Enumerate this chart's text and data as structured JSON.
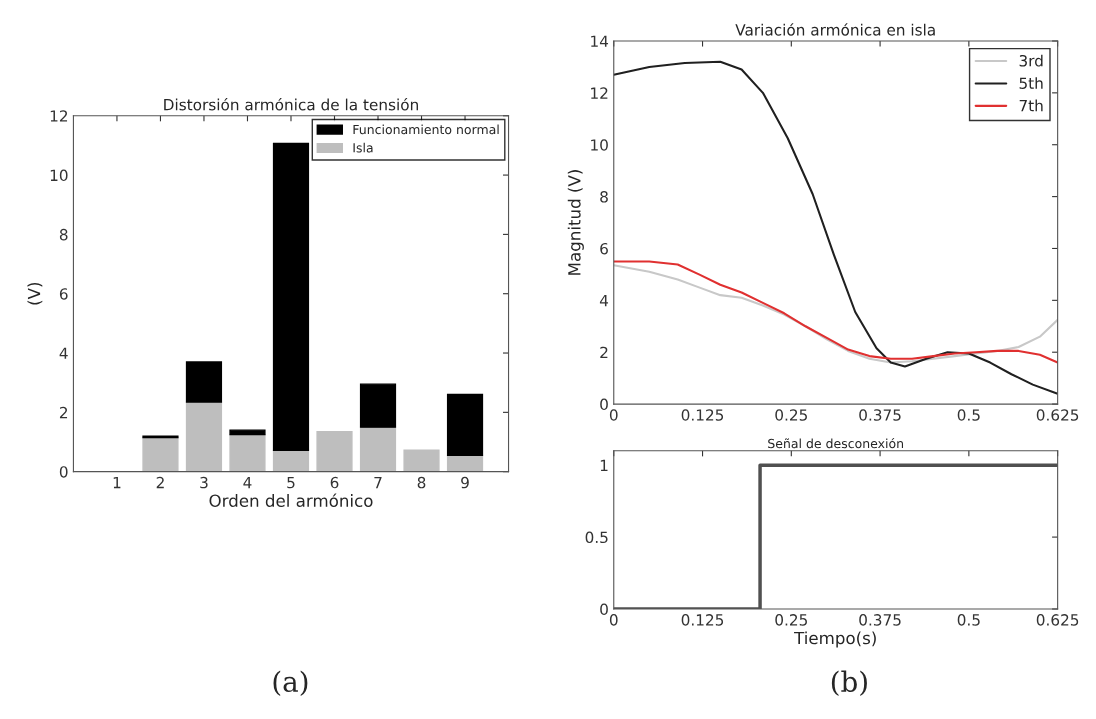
{
  "chart_data": [
    {
      "type": "bar",
      "title": "Distorsión armónica de la tensión",
      "xlabel": "Orden del armónico",
      "ylabel": "(V)",
      "categories": [
        "1",
        "2",
        "3",
        "4",
        "5",
        "6",
        "7",
        "8",
        "9"
      ],
      "stacked": true,
      "series": [
        {
          "name": "Isla",
          "color": "#bebebe",
          "values": [
            null,
            1.15,
            2.35,
            1.25,
            0.72,
            1.35,
            1.5,
            0.72,
            0.55
          ]
        },
        {
          "name": "Funcionamiento normal",
          "color": "#000000",
          "values": [
            null,
            0.05,
            1.35,
            0.15,
            10.35,
            null,
            1.45,
            null,
            2.05
          ]
        }
      ],
      "ylim": [
        0,
        12
      ],
      "yticks": [
        0,
        2,
        4,
        6,
        8,
        10,
        12
      ],
      "grid": false,
      "legend": "top right",
      "annotations": [
        "(a)"
      ]
    },
    {
      "type": "line",
      "title": "Variación armónica en isla",
      "ylabel": "Magnitud (V)",
      "x": [
        0,
        0.05,
        0.09,
        0.12,
        0.15,
        0.18,
        0.21,
        0.24,
        0.27,
        0.3,
        0.33,
        0.36,
        0.39,
        0.42,
        0.45,
        0.48,
        0.51,
        0.54,
        0.57,
        0.6,
        0.625
      ],
      "series": [
        {
          "name": "3rd",
          "color": "#c8c8c8",
          "values": [
            5.35,
            5.1,
            4.8,
            4.5,
            4.2,
            4.1,
            3.8,
            3.45,
            3.0,
            2.5,
            2.05,
            1.75,
            1.6,
            1.65,
            1.75,
            1.85,
            1.95,
            2.05,
            2.2,
            2.6,
            3.25
          ]
        },
        {
          "name": "5th",
          "color": "#202020",
          "x": [
            0,
            0.05,
            0.1,
            0.15,
            0.18,
            0.21,
            0.245,
            0.28,
            0.31,
            0.34,
            0.37,
            0.39,
            0.41,
            0.44,
            0.47,
            0.5,
            0.53,
            0.56,
            0.59,
            0.625
          ],
          "values": [
            12.7,
            13.0,
            13.15,
            13.2,
            12.9,
            12.0,
            10.25,
            8.1,
            5.75,
            3.55,
            2.15,
            1.6,
            1.45,
            1.75,
            2.0,
            1.95,
            1.6,
            1.15,
            0.75,
            0.4
          ]
        },
        {
          "name": "7th",
          "color": "#e03030",
          "values": [
            5.5,
            5.5,
            5.38,
            5.0,
            4.6,
            4.3,
            3.9,
            3.5,
            3.0,
            2.55,
            2.1,
            1.85,
            1.75,
            1.75,
            1.85,
            1.95,
            2.0,
            2.05,
            2.05,
            1.9,
            1.6
          ]
        }
      ],
      "xlim": [
        0,
        0.625
      ],
      "xticks": [
        0,
        0.125,
        0.25,
        0.375,
        0.5,
        0.625
      ],
      "ylim": [
        0,
        14
      ],
      "yticks": [
        0,
        2,
        4,
        6,
        8,
        10,
        12,
        14
      ],
      "grid": false,
      "legend": "top right"
    },
    {
      "type": "step",
      "title": "Señal de desconexión",
      "xlabel": "Tiempo(s)",
      "x": [
        0,
        0.206,
        0.625
      ],
      "series": [
        {
          "color": "#505050",
          "values": [
            0,
            1,
            1
          ]
        }
      ],
      "xlim": [
        0,
        0.625
      ],
      "xticks": [
        0,
        0.125,
        0.25,
        0.375,
        0.5,
        0.625
      ],
      "ylim": [
        0,
        1.1
      ],
      "yticks": [
        0,
        0.5,
        1
      ],
      "grid": false,
      "annotations": [
        "(b)"
      ]
    }
  ]
}
